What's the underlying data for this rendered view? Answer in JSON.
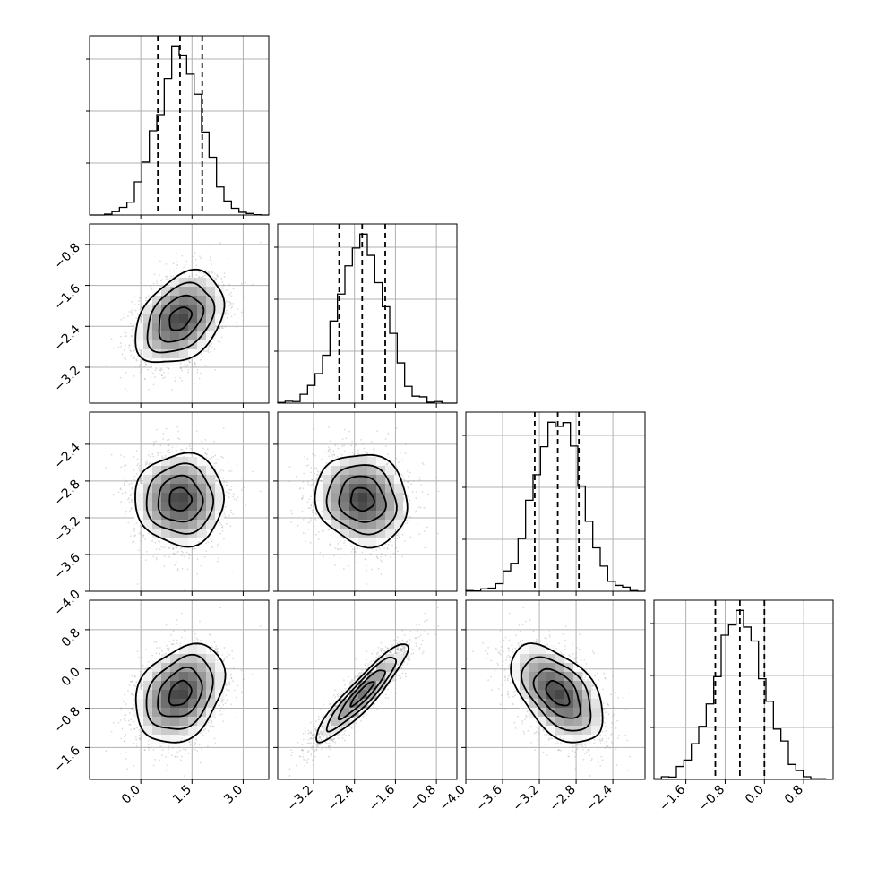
{
  "chart_data": {
    "type": "corner",
    "params": [
      {
        "range": [
          -1.5,
          3.75
        ],
        "ticks": [
          0.0,
          1.5,
          3.0
        ],
        "tick_labels": [
          "0.0",
          "1.5",
          "3.0"
        ],
        "mean": 1.15,
        "sd": 0.65,
        "quantiles": [
          0.5,
          1.15,
          1.8
        ]
      },
      {
        "range": [
          -3.9,
          -0.4
        ],
        "ticks": [
          -3.2,
          -2.4,
          -1.6,
          -0.8
        ],
        "tick_labels": [
          "−3.2",
          "−2.4",
          "−1.6",
          "−0.8"
        ],
        "mean": -2.25,
        "sd": 0.45,
        "quantiles": [
          -2.7,
          -2.25,
          -1.8
        ]
      },
      {
        "range": [
          -4.0,
          -2.05
        ],
        "ticks": [
          -4.0,
          -3.6,
          -3.2,
          -2.8,
          -2.4
        ],
        "tick_labels": [
          "−4.0",
          "−3.6",
          "−3.2",
          "−2.8",
          "−2.4"
        ],
        "mean": -3.0,
        "sd": 0.25,
        "quantiles": [
          -3.25,
          -3.0,
          -2.77
        ]
      },
      {
        "range": [
          -2.25,
          1.4
        ],
        "ticks": [
          -1.6,
          -0.8,
          0.0,
          0.8
        ],
        "tick_labels": [
          "−1.6",
          "−0.8",
          "0.0",
          "0.8"
        ],
        "mean": -0.5,
        "sd": 0.5,
        "quantiles": [
          -1.0,
          -0.5,
          0.0
        ]
      }
    ],
    "correlations": [
      [
        1.0,
        0.35,
        0.0,
        0.3
      ],
      [
        0.35,
        1.0,
        -0.1,
        0.92
      ],
      [
        0.0,
        -0.1,
        1.0,
        -0.5
      ],
      [
        0.3,
        0.92,
        -0.5,
        1.0
      ]
    ],
    "contour_levels": [
      0.5,
      1.0,
      1.5,
      2.0
    ],
    "samples": 4000,
    "grid": true,
    "colors": {
      "line": "#000000",
      "points": "#9a9a9a",
      "grid": "#b0b0b0"
    }
  }
}
